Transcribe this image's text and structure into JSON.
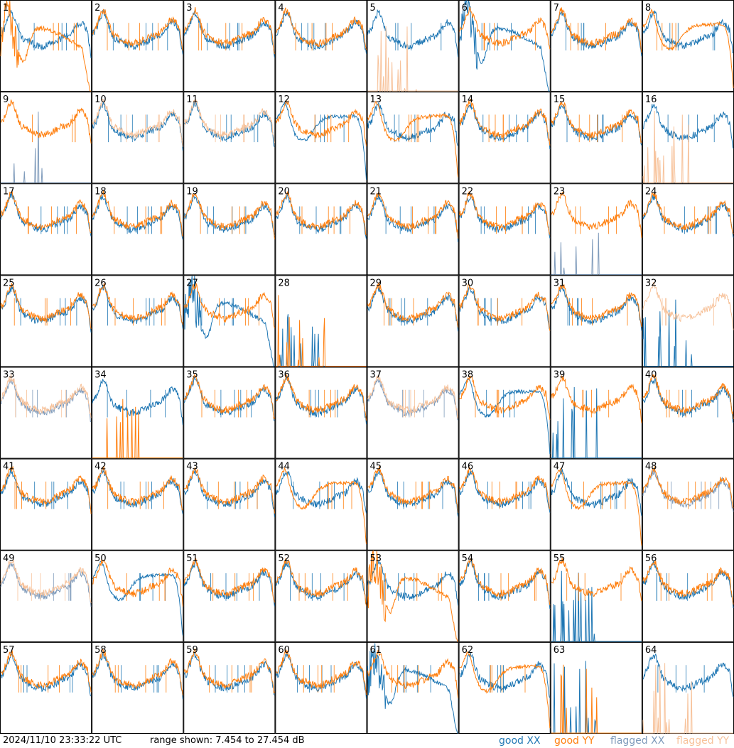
{
  "chart_data": {
    "type": "line",
    "description_grid": "8x8 small multiples, one per antenna",
    "yrange_db": [
      7.454,
      27.454
    ],
    "footer": {
      "timestamp": "2024/11/10 23:33:22 UTC",
      "range_text": "range shown: 7.454 to 27.454 dB"
    },
    "legend": [
      {
        "label": "good XX",
        "color": "#1f77b4"
      },
      {
        "label": "good YY",
        "color": "#ff7f0e"
      },
      {
        "label": "flagged XX",
        "color": "#7f9bbb"
      },
      {
        "label": "flagged YY",
        "color": "#f7c29a"
      }
    ],
    "panels": [
      {
        "id": "1",
        "xx": "N",
        "yy": "C",
        "xf": 0,
        "yf": 0
      },
      {
        "id": "2",
        "xx": "N",
        "yy": "N",
        "xf": 0,
        "yf": 0
      },
      {
        "id": "3",
        "xx": "N",
        "yy": "N",
        "xf": 0,
        "yf": 0
      },
      {
        "id": "4",
        "xx": "N",
        "yy": "N",
        "xf": 0,
        "yf": 0
      },
      {
        "id": "5",
        "xx": "N",
        "yy": "D",
        "xf": 0,
        "yf": 1
      },
      {
        "id": "6",
        "xx": "C",
        "yy": "N",
        "xf": 0,
        "yf": 0
      },
      {
        "id": "7",
        "xx": "N",
        "yy": "N",
        "xf": 0,
        "yf": 0
      },
      {
        "id": "8",
        "xx": "N",
        "yy": "R",
        "xf": 0,
        "yf": 0
      },
      {
        "id": "9",
        "xx": "D",
        "yy": "N",
        "xf": 1,
        "yf": 0
      },
      {
        "id": "10",
        "xx": "N",
        "yy": "N",
        "xf": 0,
        "yf": 1
      },
      {
        "id": "11",
        "xx": "N",
        "yy": "N",
        "xf": 0,
        "yf": 1
      },
      {
        "id": "12",
        "xx": "R",
        "yy": "N",
        "xf": 0,
        "yf": 0
      },
      {
        "id": "13",
        "xx": "N",
        "yy": "R",
        "xf": 0,
        "yf": 0
      },
      {
        "id": "14",
        "xx": "N",
        "yy": "N",
        "xf": 0,
        "yf": 0
      },
      {
        "id": "15",
        "xx": "N",
        "yy": "N",
        "xf": 0,
        "yf": 0
      },
      {
        "id": "16",
        "xx": "N",
        "yy": "D",
        "xf": 0,
        "yf": 1
      },
      {
        "id": "17",
        "xx": "N",
        "yy": "N",
        "xf": 0,
        "yf": 0
      },
      {
        "id": "18",
        "xx": "N",
        "yy": "N",
        "xf": 0,
        "yf": 0
      },
      {
        "id": "19",
        "xx": "N",
        "yy": "N",
        "xf": 0,
        "yf": 0
      },
      {
        "id": "20",
        "xx": "N",
        "yy": "N",
        "xf": 0,
        "yf": 0
      },
      {
        "id": "21",
        "xx": "N",
        "yy": "N",
        "xf": 0,
        "yf": 0
      },
      {
        "id": "22",
        "xx": "N",
        "yy": "N",
        "xf": 0,
        "yf": 0
      },
      {
        "id": "23",
        "xx": "D",
        "yy": "N",
        "xf": 1,
        "yf": 0
      },
      {
        "id": "24",
        "xx": "N",
        "yy": "N",
        "xf": 0,
        "yf": 0
      },
      {
        "id": "25",
        "xx": "N",
        "yy": "N",
        "xf": 0,
        "yf": 0
      },
      {
        "id": "26",
        "xx": "N",
        "yy": "N",
        "xf": 0,
        "yf": 0
      },
      {
        "id": "27",
        "xx": "C",
        "yy": "N",
        "xf": 0,
        "yf": 0
      },
      {
        "id": "28",
        "xx": "D",
        "yy": "D",
        "xf": 0,
        "yf": 0
      },
      {
        "id": "29",
        "xx": "N",
        "yy": "N",
        "xf": 0,
        "yf": 0
      },
      {
        "id": "30",
        "xx": "N",
        "yy": "N",
        "xf": 0,
        "yf": 0
      },
      {
        "id": "31",
        "xx": "N",
        "yy": "N",
        "xf": 0,
        "yf": 0
      },
      {
        "id": "32",
        "xx": "D",
        "yy": "N",
        "xf": 0,
        "yf": 1
      },
      {
        "id": "33",
        "xx": "N",
        "yy": "N",
        "xf": 1,
        "yf": 1
      },
      {
        "id": "34",
        "xx": "N",
        "yy": "D",
        "xf": 0,
        "yf": 0
      },
      {
        "id": "35",
        "xx": "N",
        "yy": "N",
        "xf": 0,
        "yf": 0
      },
      {
        "id": "36",
        "xx": "N",
        "yy": "N",
        "xf": 0,
        "yf": 0
      },
      {
        "id": "37",
        "xx": "N",
        "yy": "N",
        "xf": 1,
        "yf": 1
      },
      {
        "id": "38",
        "xx": "R",
        "yy": "N",
        "xf": 0,
        "yf": 0
      },
      {
        "id": "39",
        "xx": "D",
        "yy": "N",
        "xf": 0,
        "yf": 0
      },
      {
        "id": "40",
        "xx": "N",
        "yy": "N",
        "xf": 0,
        "yf": 0
      },
      {
        "id": "41",
        "xx": "N",
        "yy": "N",
        "xf": 0,
        "yf": 0
      },
      {
        "id": "42",
        "xx": "N",
        "yy": "N",
        "xf": 0,
        "yf": 0
      },
      {
        "id": "43",
        "xx": "N",
        "yy": "N",
        "xf": 0,
        "yf": 0
      },
      {
        "id": "44",
        "xx": "N",
        "yy": "R",
        "xf": 0,
        "yf": 0
      },
      {
        "id": "45",
        "xx": "N",
        "yy": "N",
        "xf": 0,
        "yf": 0
      },
      {
        "id": "46",
        "xx": "N",
        "yy": "N",
        "xf": 0,
        "yf": 0
      },
      {
        "id": "47",
        "xx": "N",
        "yy": "R",
        "xf": 0,
        "yf": 0
      },
      {
        "id": "48",
        "xx": "N",
        "yy": "N",
        "xf": 1,
        "yf": 0
      },
      {
        "id": "49",
        "xx": "N",
        "yy": "N",
        "xf": 1,
        "yf": 1
      },
      {
        "id": "50",
        "xx": "R",
        "yy": "N",
        "xf": 0,
        "yf": 0
      },
      {
        "id": "51",
        "xx": "N",
        "yy": "N",
        "xf": 0,
        "yf": 0
      },
      {
        "id": "52",
        "xx": "N",
        "yy": "N",
        "xf": 0,
        "yf": 0
      },
      {
        "id": "53",
        "xx": "N",
        "yy": "C",
        "xf": 0,
        "yf": 0
      },
      {
        "id": "54",
        "xx": "N",
        "yy": "N",
        "xf": 0,
        "yf": 0
      },
      {
        "id": "55",
        "xx": "D",
        "yy": "N",
        "xf": 0,
        "yf": 0
      },
      {
        "id": "56",
        "xx": "N",
        "yy": "N",
        "xf": 0,
        "yf": 0
      },
      {
        "id": "57",
        "xx": "N",
        "yy": "N",
        "xf": 0,
        "yf": 0
      },
      {
        "id": "58",
        "xx": "N",
        "yy": "N",
        "xf": 0,
        "yf": 0
      },
      {
        "id": "59",
        "xx": "N",
        "yy": "N",
        "xf": 0,
        "yf": 0
      },
      {
        "id": "60",
        "xx": "N",
        "yy": "N",
        "xf": 0,
        "yf": 0
      },
      {
        "id": "61",
        "xx": "C",
        "yy": "N",
        "xf": 0,
        "yf": 0
      },
      {
        "id": "62",
        "xx": "N",
        "yy": "R",
        "xf": 0,
        "yf": 0
      },
      {
        "id": "63",
        "xx": "D",
        "yy": "D",
        "xf": 0,
        "yf": 0
      },
      {
        "id": "64",
        "xx": "N",
        "yy": "D",
        "xf": 0,
        "yf": 1
      }
    ]
  }
}
